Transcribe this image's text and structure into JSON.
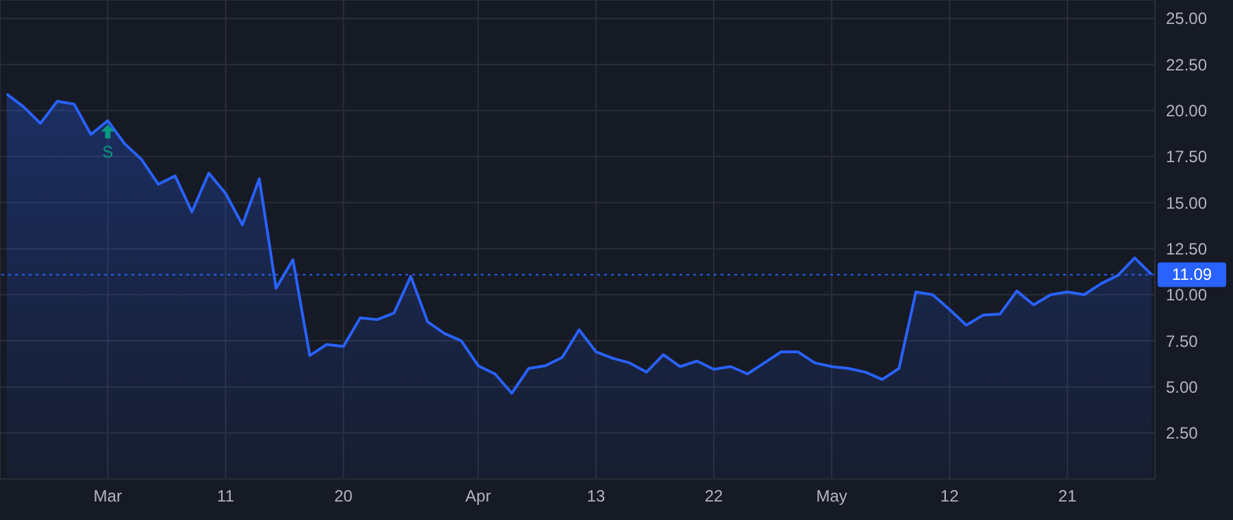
{
  "chart_data": {
    "type": "area",
    "categories": [
      null,
      null,
      null,
      null,
      null,
      null,
      "Mar",
      null,
      null,
      null,
      null,
      null,
      null,
      "11",
      null,
      null,
      null,
      null,
      null,
      null,
      "20",
      null,
      null,
      null,
      null,
      null,
      null,
      null,
      "Apr",
      null,
      null,
      null,
      null,
      null,
      null,
      "13",
      null,
      null,
      null,
      null,
      null,
      null,
      "22",
      null,
      null,
      null,
      null,
      null,
      null,
      "May",
      null,
      null,
      null,
      null,
      null,
      null,
      "12",
      null,
      null,
      null,
      null,
      null,
      null,
      "21",
      null,
      null,
      null,
      null,
      null
    ],
    "series": [
      {
        "color": "#2962ff",
        "values": [
          20.9,
          20.2,
          19.3,
          20.5,
          20.35,
          18.7,
          19.45,
          18.2,
          17.35,
          16.0,
          16.45,
          14.5,
          16.6,
          15.5,
          13.8,
          16.3,
          10.35,
          11.9,
          6.7,
          7.3,
          7.2,
          8.75,
          8.65,
          9.0,
          11.0,
          8.53,
          7.9,
          7.5,
          6.15,
          5.7,
          4.65,
          6.0,
          6.15,
          6.6,
          8.1,
          6.9,
          6.55,
          6.3,
          5.8,
          6.75,
          6.1,
          6.4,
          5.95,
          6.1,
          5.7,
          6.3,
          6.9,
          6.9,
          6.3,
          6.1,
          6.0,
          5.8,
          5.4,
          6.0,
          10.15,
          10.0,
          9.2,
          8.35,
          8.9,
          8.95,
          10.2,
          9.45,
          10.0,
          10.15,
          10.0,
          10.6,
          11.05,
          12.0,
          11.09
        ]
      }
    ],
    "ylim": [
      0,
      26
    ],
    "yticks": [
      {
        "value": 2.5,
        "label": "2.50"
      },
      {
        "value": 5,
        "label": "5.00"
      },
      {
        "value": 7.5,
        "label": "7.50"
      },
      {
        "value": 10,
        "label": "10.00"
      },
      {
        "value": 12.5,
        "label": "12.50"
      },
      {
        "value": 15,
        "label": "15.00"
      },
      {
        "value": 17.5,
        "label": "17.50"
      },
      {
        "value": 20,
        "label": "20.00"
      },
      {
        "value": 22.5,
        "label": "22.50"
      },
      {
        "value": 25,
        "label": "25.00"
      }
    ],
    "ref_lines": [
      {
        "axis": "y",
        "value": 11.09,
        "label": "11.09",
        "color": "#2962ff",
        "line_style": "dotted"
      }
    ],
    "annotations": [
      {
        "text": "S",
        "x": "Mar",
        "y": 19.45
      }
    ],
    "grid": true,
    "marker": "none",
    "line_style": "solid"
  }
}
